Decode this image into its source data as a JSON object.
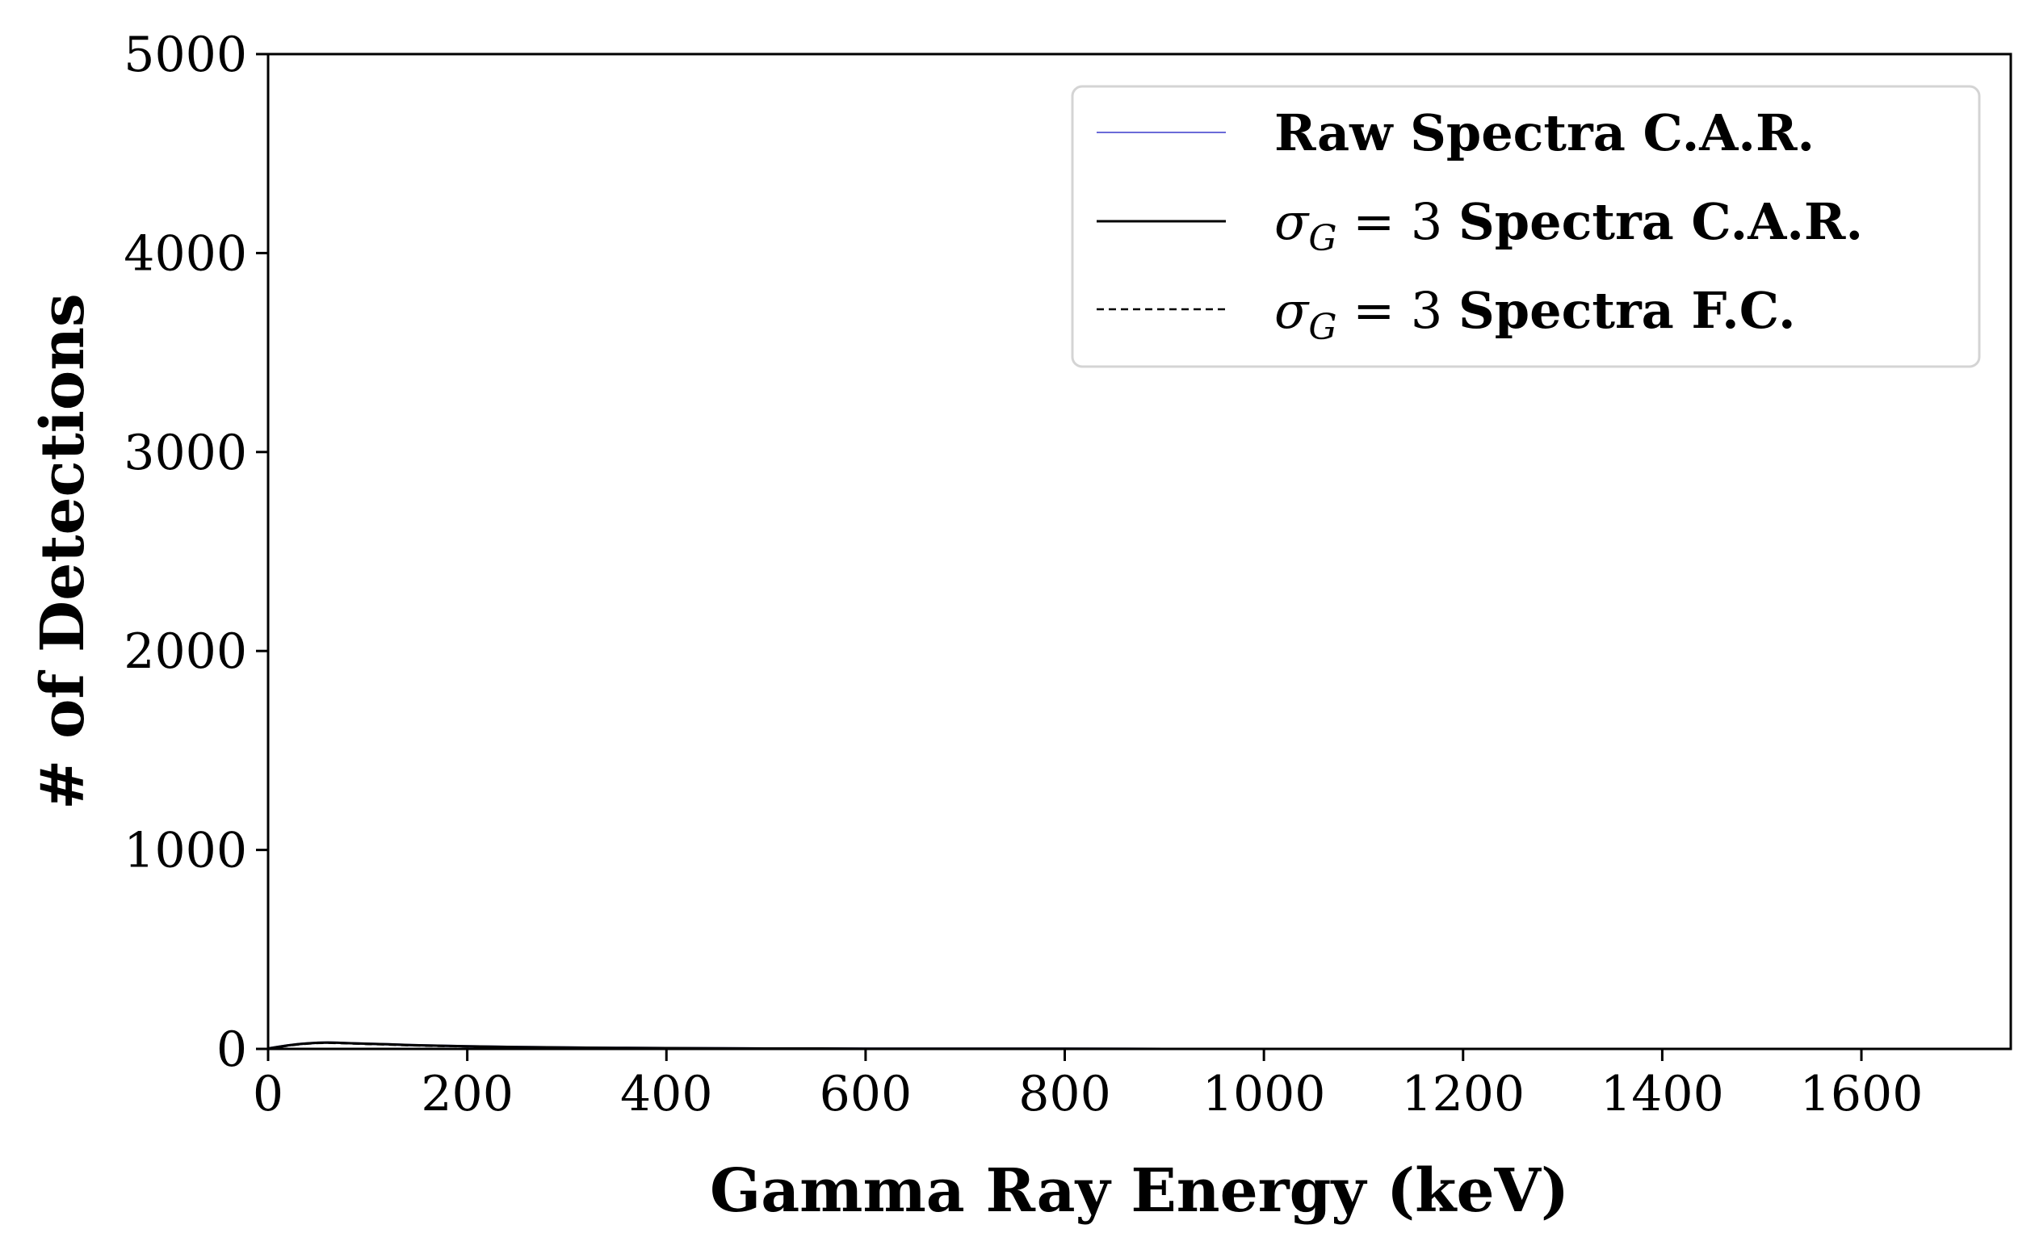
{
  "chart_data": {
    "type": "line",
    "title": "",
    "xlabel": "Gamma Ray Energy (keV)",
    "ylabel": "# of Detections",
    "xlim": [
      0,
      1750
    ],
    "ylim": [
      0,
      5000
    ],
    "x_ticks": [
      0,
      200,
      400,
      600,
      800,
      1000,
      1200,
      1400,
      1600
    ],
    "x_tick_labels": [
      "0",
      "200",
      "400",
      "600",
      "800",
      "1000",
      "1200",
      "1400",
      "1600"
    ],
    "y_ticks": [
      0,
      1000,
      2000,
      3000,
      4000,
      5000
    ],
    "y_tick_labels": [
      "0",
      "1000",
      "2000",
      "3000",
      "4000",
      "5000"
    ],
    "grid": false,
    "legend_position": "top-right",
    "legend": {
      "raw_car": "Raw Spectra C.A.R.",
      "smoothed_car_math_sigma": "σ",
      "smoothed_car_math_sub": "G",
      "smoothed_car_math_eq": " = 3 ",
      "smoothed_car_text": "Spectra C.A.R.",
      "smoothed_fc_math_sigma": "σ",
      "smoothed_fc_math_sub": "G",
      "smoothed_fc_math_eq": " = 3 ",
      "smoothed_fc_text": "Spectra F.C."
    },
    "series": [
      {
        "name": "Raw Spectra C.A.R.",
        "color": "#6b6bd8",
        "style": "solid",
        "x": [
          0,
          10,
          20,
          30,
          40,
          50,
          60,
          70,
          80,
          100,
          120,
          140,
          160,
          200,
          240,
          280,
          320,
          360,
          400,
          450,
          500,
          550,
          600,
          650,
          700,
          800,
          900,
          1000,
          1100,
          1200,
          1300,
          1400,
          1500,
          1600,
          1700,
          1750
        ],
        "y": [
          2,
          10,
          18,
          24,
          28,
          31,
          32,
          31,
          29,
          26,
          23,
          20,
          17,
          13,
          10,
          8,
          6,
          5,
          4,
          3,
          2,
          2,
          1,
          1,
          1,
          1,
          0,
          0,
          0,
          0,
          0,
          0,
          0,
          0,
          0,
          0
        ]
      },
      {
        "name": "σ_G = 3 Spectra C.A.R.",
        "color": "#000000",
        "style": "solid",
        "x": [
          0,
          10,
          20,
          30,
          40,
          50,
          60,
          70,
          80,
          100,
          120,
          140,
          160,
          200,
          240,
          280,
          320,
          360,
          400,
          450,
          500,
          550,
          600,
          650,
          700,
          800,
          900,
          1000,
          1100,
          1200,
          1300,
          1400,
          1500,
          1600,
          1700,
          1750
        ],
        "y": [
          2,
          10,
          18,
          24,
          28,
          31,
          32,
          31,
          29,
          26,
          23,
          20,
          17,
          13,
          10,
          8,
          6,
          5,
          4,
          3,
          2,
          2,
          1,
          1,
          1,
          1,
          0,
          0,
          0,
          0,
          0,
          0,
          0,
          0,
          0,
          0
        ]
      },
      {
        "name": "σ_G = 3 Spectra F.C.",
        "color": "#000000",
        "style": "dashed",
        "x": [
          0,
          10,
          20,
          30,
          40,
          50,
          60,
          70,
          80,
          100,
          120,
          140,
          160,
          200,
          240,
          280,
          320,
          360,
          400,
          450,
          500,
          550,
          600,
          650,
          700,
          800,
          900,
          1000,
          1100,
          1200,
          1300,
          1400,
          1500,
          1600,
          1700,
          1750
        ],
        "y": [
          2,
          9,
          16,
          22,
          26,
          29,
          30,
          29,
          27,
          24,
          21,
          18,
          15,
          12,
          9,
          7,
          5,
          4,
          3,
          2,
          2,
          1,
          1,
          1,
          1,
          0,
          0,
          0,
          0,
          0,
          0,
          0,
          0,
          0,
          0,
          0
        ]
      }
    ]
  }
}
